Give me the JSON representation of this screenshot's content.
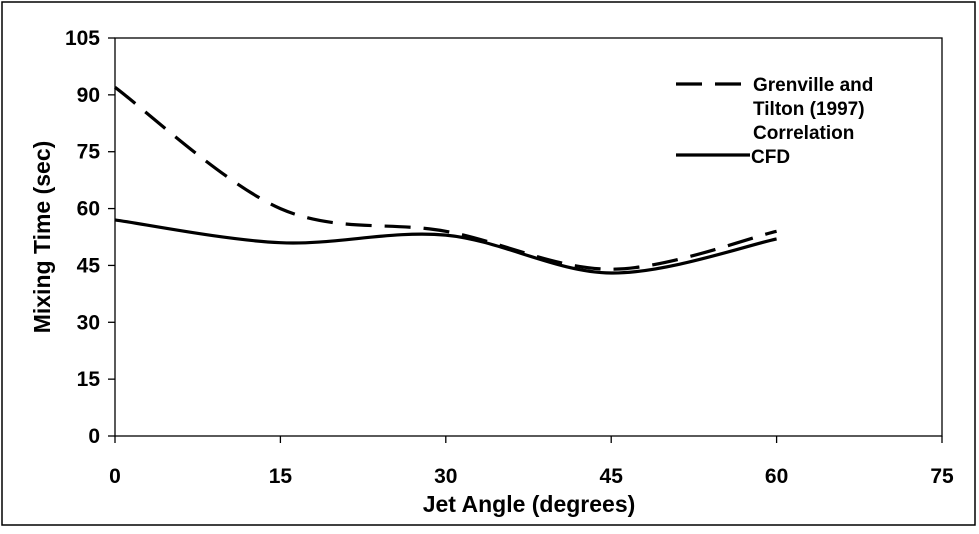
{
  "chart_data": {
    "type": "line",
    "title": "",
    "xlabel": "Jet Angle (degrees)",
    "ylabel": "Mixing Time (sec)",
    "xlim": [
      0,
      75
    ],
    "ylim": [
      0,
      105
    ],
    "xticks": [
      0,
      15,
      30,
      45,
      60,
      75
    ],
    "yticks": [
      0,
      15,
      30,
      45,
      60,
      75,
      90,
      105
    ],
    "grid": false,
    "legend_position": "top-right",
    "series": [
      {
        "name_lines": [
          "Grenville and",
          "Tilton (1997)",
          "Correlation"
        ],
        "style": "dashed",
        "color": "#000000",
        "x": [
          0,
          15,
          30,
          45,
          60
        ],
        "y": [
          92,
          60,
          54,
          44,
          54
        ]
      },
      {
        "name": "CFD",
        "style": "solid",
        "color": "#000000",
        "x": [
          0,
          15,
          30,
          45,
          60
        ],
        "y": [
          57,
          51,
          53,
          43,
          52
        ]
      }
    ]
  }
}
